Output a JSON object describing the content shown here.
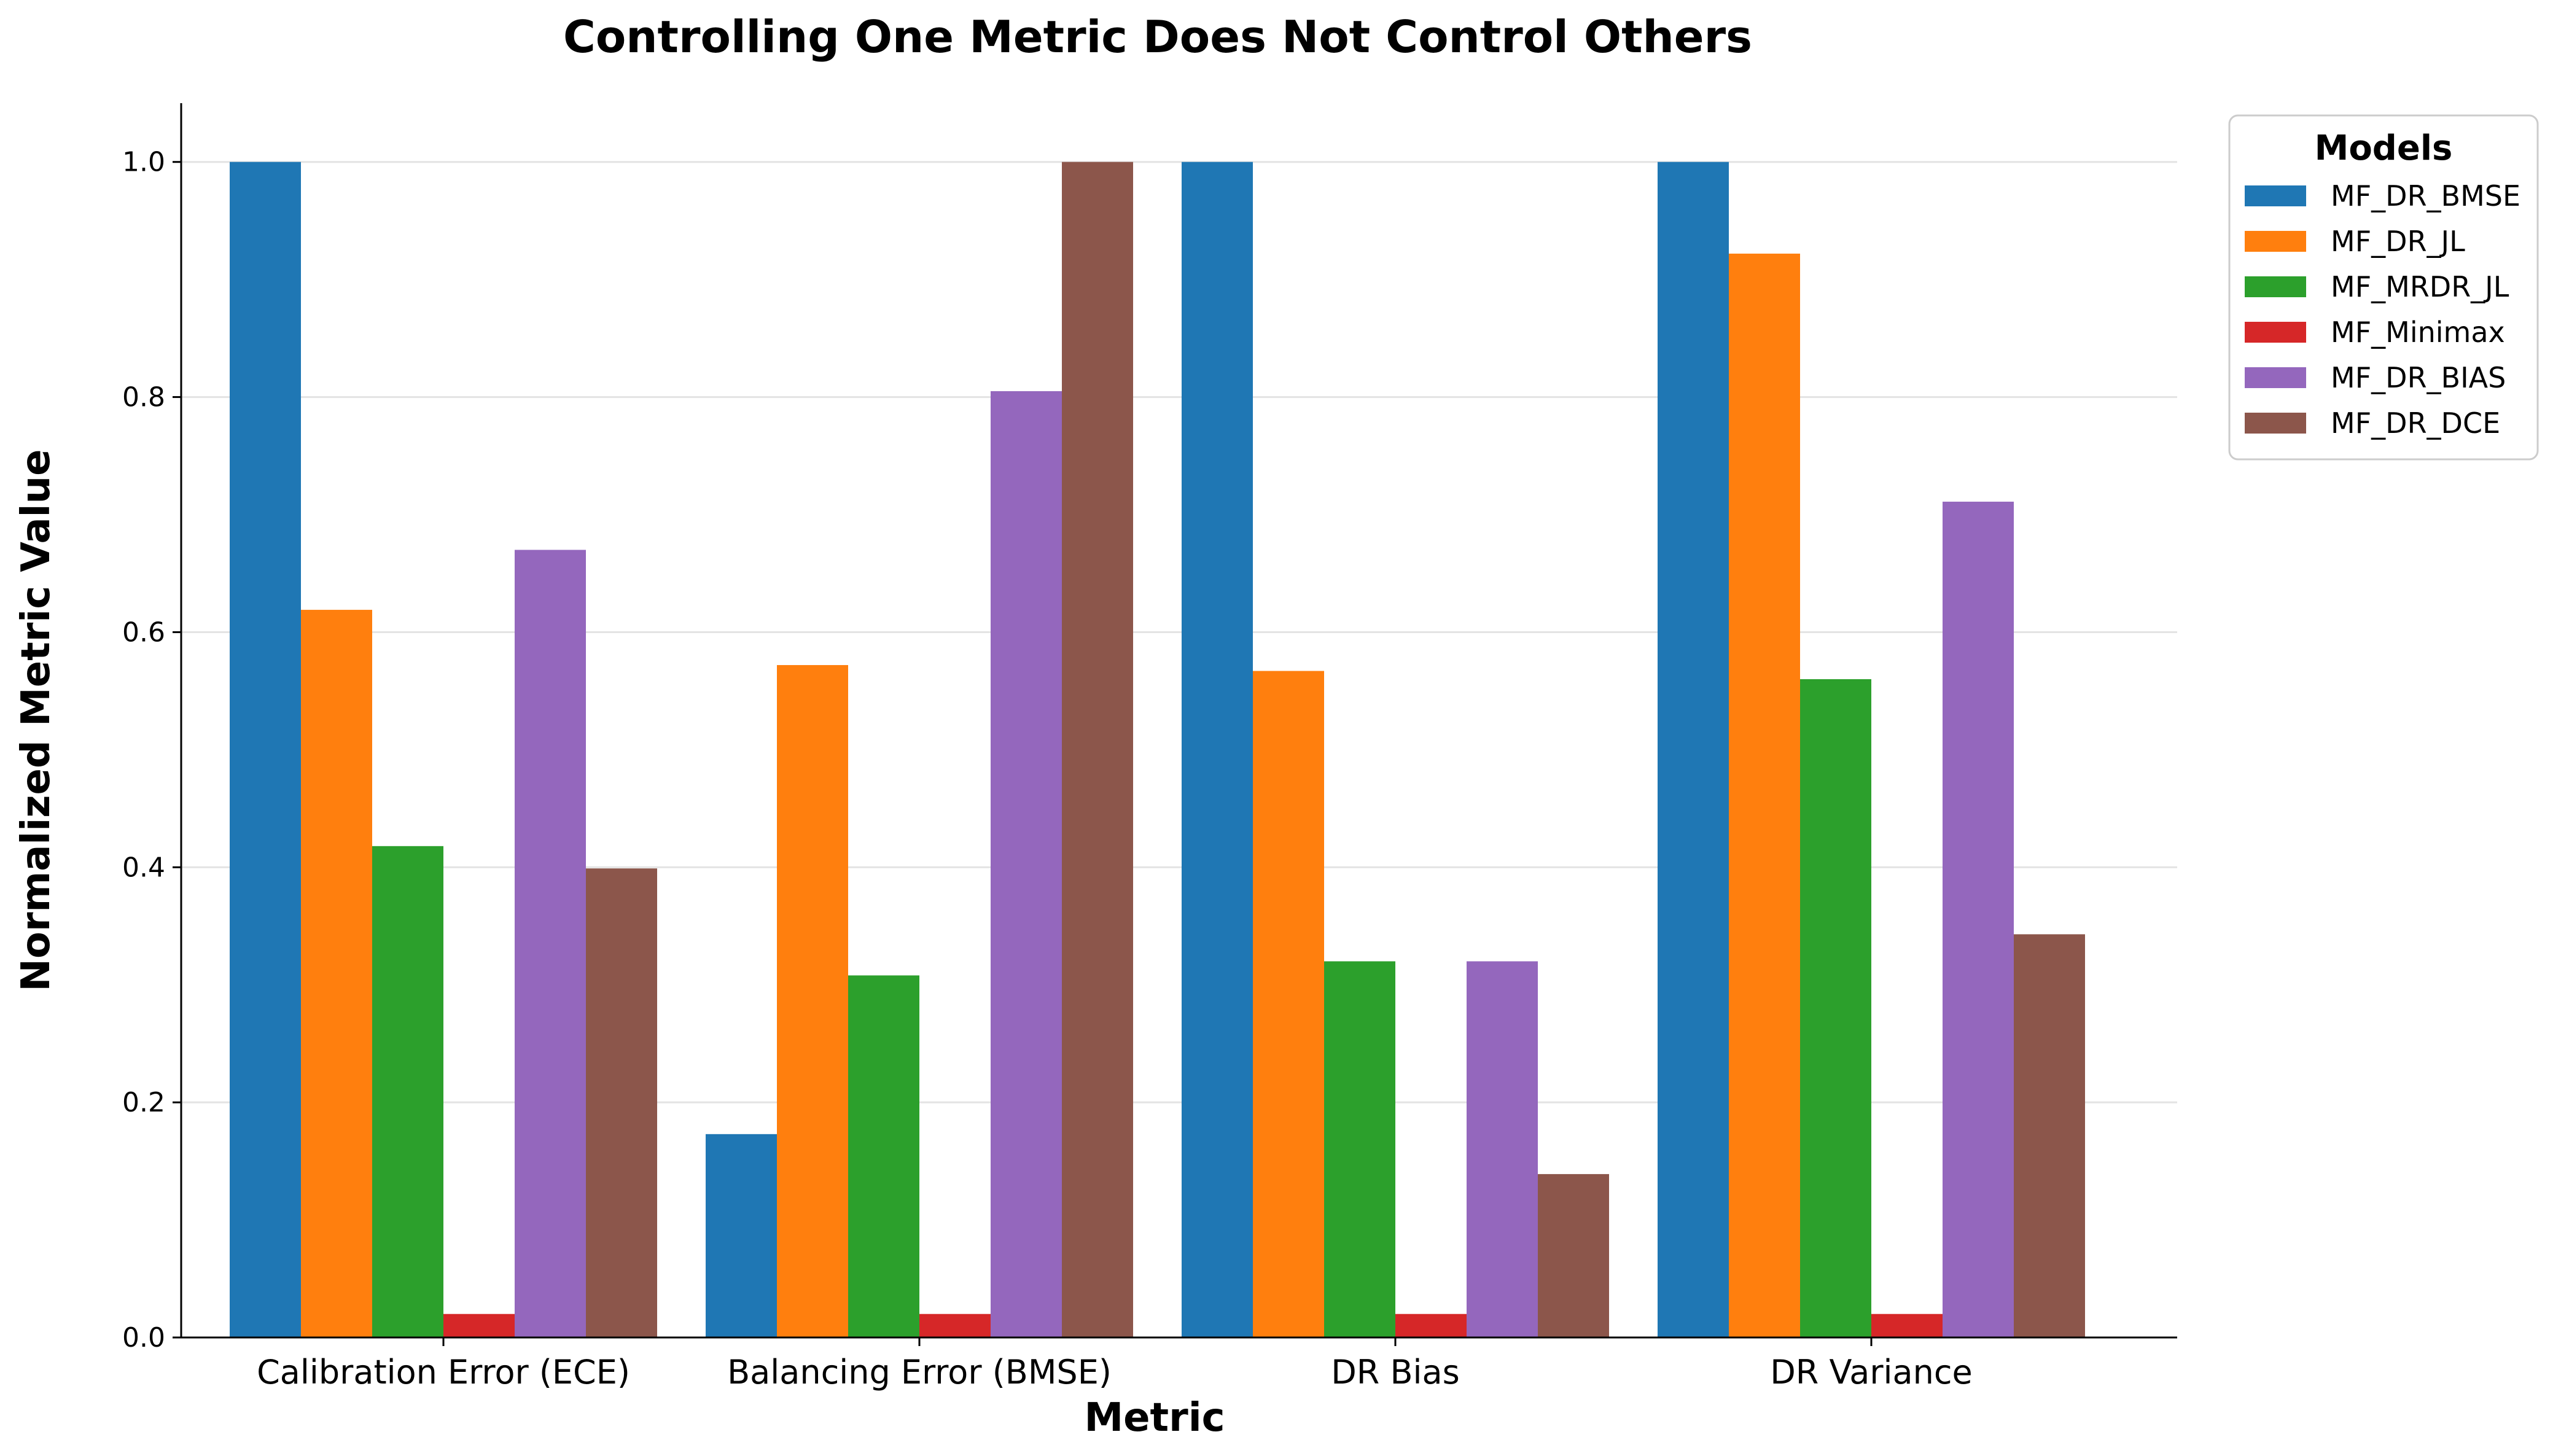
{
  "chart_data": {
    "type": "bar",
    "title": "Controlling One Metric Does Not Control Others",
    "xlabel": "Metric",
    "ylabel": "Normalized Metric Value",
    "categories": [
      "Calibration Error (ECE)",
      "Balancing Error (BMSE)",
      "DR Bias",
      "DR Variance"
    ],
    "ylim": [
      0,
      1.05
    ],
    "yticks": [
      "0.0",
      "0.2",
      "0.4",
      "0.6",
      "0.8",
      "1.0"
    ],
    "grid": "horizontal",
    "legend": {
      "title": "Models",
      "placement": "outside-top-right"
    },
    "series": [
      {
        "name": "MF_DR_BMSE",
        "color": "#1f77b4",
        "values": [
          1.0,
          0.173,
          1.0,
          1.0
        ]
      },
      {
        "name": "MF_DR_JL",
        "color": "#ff7f0e",
        "values": [
          0.619,
          0.572,
          0.567,
          0.922
        ]
      },
      {
        "name": "MF_MRDR_JL",
        "color": "#2ca02c",
        "values": [
          0.418,
          0.308,
          0.32,
          0.56
        ]
      },
      {
        "name": "MF_Minimax",
        "color": "#d62728",
        "values": [
          0.02,
          0.02,
          0.02,
          0.02
        ]
      },
      {
        "name": "MF_DR_BIAS",
        "color": "#9467bd",
        "values": [
          0.67,
          0.805,
          0.32,
          0.711
        ]
      },
      {
        "name": "MF_DR_DCE",
        "color": "#8c564b",
        "values": [
          0.399,
          1.0,
          0.139,
          0.343
        ]
      }
    ]
  }
}
